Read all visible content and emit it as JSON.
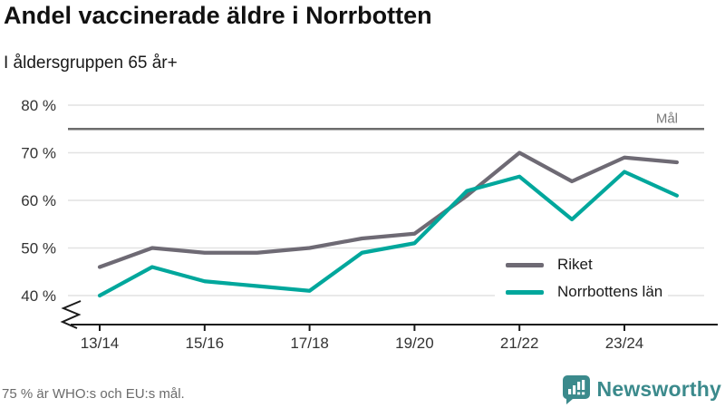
{
  "header": {
    "title": "Andel vaccinerade äldre i Norrbotten",
    "subtitle": "I åldersgruppen 65 år+"
  },
  "chart_data": {
    "type": "line",
    "categories": [
      "13/14",
      "14/15",
      "15/16",
      "16/17",
      "17/18",
      "18/19",
      "19/20",
      "20/21",
      "21/22",
      "22/23",
      "23/24",
      "24/25"
    ],
    "series": [
      {
        "name": "Riket",
        "color": "#6e6a74",
        "values": [
          46,
          50,
          49,
          49,
          50,
          52,
          53,
          61,
          70,
          64,
          69,
          68
        ]
      },
      {
        "name": "Norrbottens län",
        "color": "#00a79c",
        "values": [
          40,
          46,
          43,
          42,
          41,
          49,
          51,
          62,
          65,
          56,
          66,
          61
        ]
      }
    ],
    "yticks": [
      {
        "value": 80,
        "label": "80 %"
      },
      {
        "value": 70,
        "label": "70 %"
      },
      {
        "value": 60,
        "label": "60 %"
      },
      {
        "value": 50,
        "label": "50 %"
      },
      {
        "value": 40,
        "label": "40 %"
      }
    ],
    "xtick_labels": [
      "13/14",
      "15/16",
      "17/18",
      "19/20",
      "21/22",
      "23/24"
    ],
    "goal": {
      "value": 75,
      "label": "Mål"
    },
    "ylim": [
      37,
      80
    ],
    "axis_break": true,
    "grid": true,
    "legend_position": "inside-bottom-right",
    "unit": "%"
  },
  "footer": {
    "note": "75 % är WHO:s och EU:s mål.",
    "brand": "Newsworthy"
  },
  "colors": {
    "grid": "#e2e2e2",
    "goal_line": "#6d6d6d",
    "goal_label": "#7a7a7a",
    "axis": "#1a1a1a",
    "axis_text": "#333333",
    "brand_teal": "#3b8a8c"
  }
}
